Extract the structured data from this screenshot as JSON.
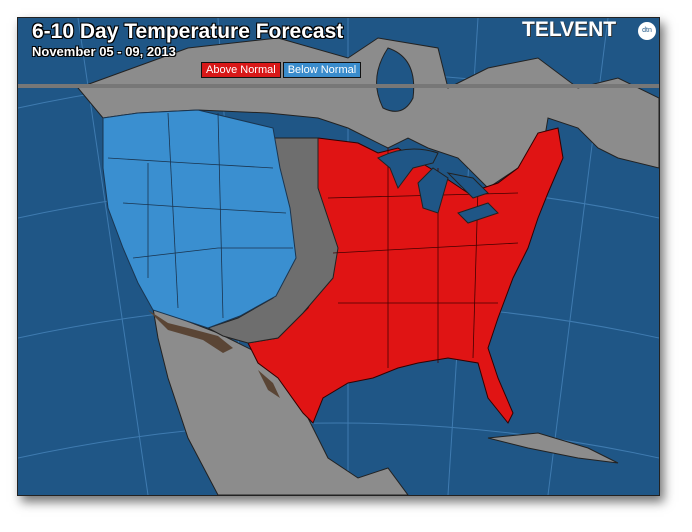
{
  "header": {
    "title": "6-10 Day Temperature Forecast",
    "subtitle": "November 05 - 09, 2013",
    "logo": "TELVENT",
    "logo_badge": "dtn"
  },
  "legend": [
    {
      "label": "Above Normal",
      "color": "#d81818"
    },
    {
      "label": "Below Normal",
      "color": "#3a8ccc"
    }
  ],
  "colors": {
    "ocean": "#1f5686",
    "land": "#8c8c8c",
    "near_normal": "#6e6e6e",
    "above_normal": "#e01414",
    "below_normal": "#3a8fd0",
    "border_shade": "#5a4535"
  },
  "regions": {
    "below_normal": "Western United States",
    "near_normal": "Central Plains",
    "above_normal": "Eastern and Southern United States"
  }
}
